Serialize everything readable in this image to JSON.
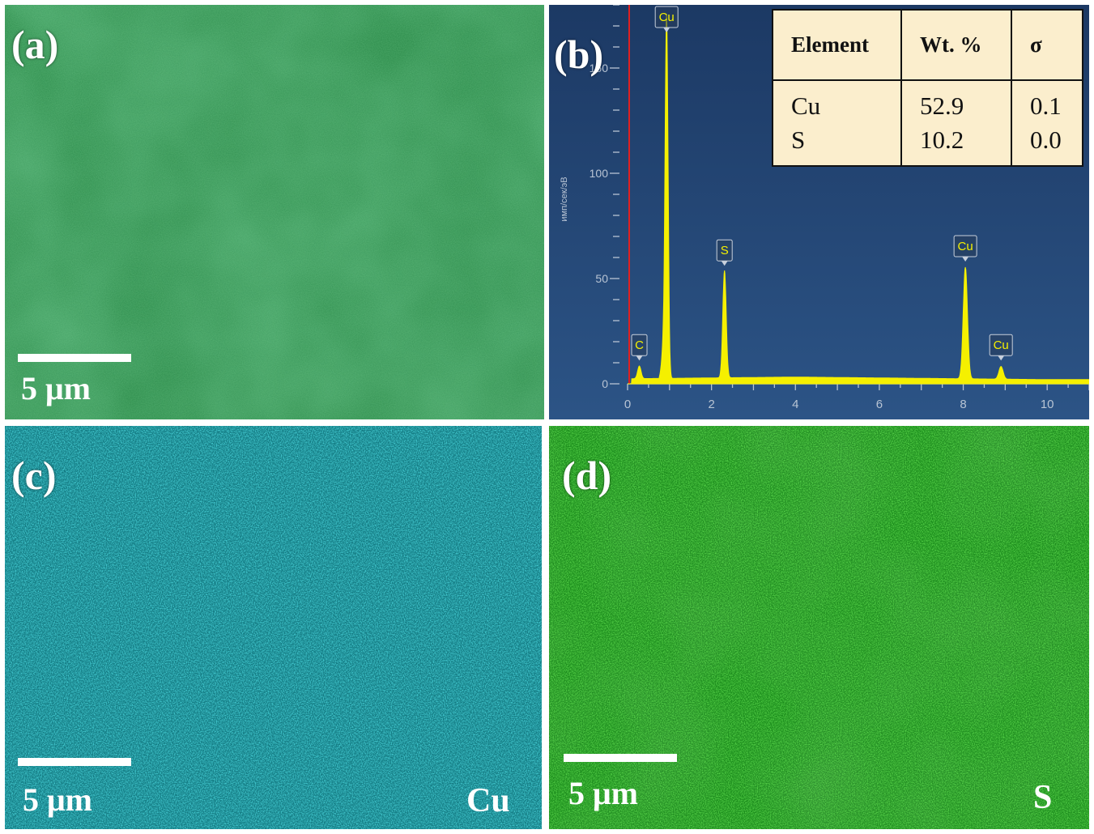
{
  "panels": {
    "a": {
      "letter": "(a)",
      "scale_label": "5 μm"
    },
    "b": {
      "letter": "(b)"
    },
    "c": {
      "letter": "(c)",
      "scale_label": "5 μm",
      "element": "Cu"
    },
    "d": {
      "letter": "(d)",
      "scale_label": "5 μm",
      "element": "S"
    }
  },
  "table": {
    "headers": [
      "Element",
      "Wt. %",
      "σ"
    ],
    "rows": [
      {
        "element": "Cu",
        "wt": "52.9",
        "sigma": "0.1"
      },
      {
        "element": "S",
        "wt": "10.2",
        "sigma": "0.0"
      }
    ]
  },
  "chart_data": {
    "type": "line",
    "ylabel": "имп/сек/эВ",
    "xlabel": "",
    "xlim": [
      0,
      11
    ],
    "ylim": [
      0,
      180
    ],
    "x_ticks": [
      0,
      2,
      4,
      6,
      8,
      10
    ],
    "y_ticks": [
      0,
      50,
      100,
      150
    ],
    "peaks": [
      {
        "label": "C",
        "x": 0.28,
        "y": 8
      },
      {
        "label": "Cu",
        "x": 0.93,
        "y": 175
      },
      {
        "label": "S",
        "x": 2.31,
        "y": 53
      },
      {
        "label": "Cu",
        "x": 8.05,
        "y": 55
      },
      {
        "label": "Cu",
        "x": 8.9,
        "y": 8
      }
    ],
    "colors": {
      "spectrum": "#f5f000",
      "background": "#1f3e68",
      "marker": "#e02020"
    }
  },
  "colors": {
    "panel_a": "#2b8a4a",
    "panel_c": "#1aa0a8",
    "panel_d": "#1fa020",
    "table_bg": "#fbeecd"
  }
}
